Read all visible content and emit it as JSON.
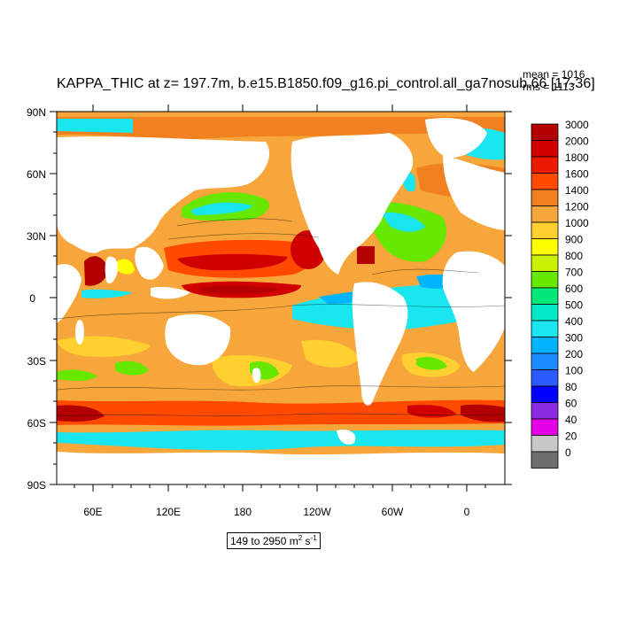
{
  "title": "KAPPA_THIC at z= 197.7m, b.e15.B1850.f09_g16.pi_control.all_ga7nosub.66 [17-36]",
  "stats": {
    "mean": "mean = 1016",
    "rms": "rms = 1113"
  },
  "range": {
    "text": "149 to 2950 m",
    "unit_sup1": "2",
    "unit_mid": " s",
    "unit_sup2": "-1"
  },
  "axes": {
    "lat_ticks": [
      "90N",
      "60N",
      "30N",
      "0",
      "30S",
      "60S",
      "90S"
    ],
    "lon_ticks": [
      "60E",
      "120E",
      "180",
      "120W",
      "60W",
      "0"
    ]
  },
  "colorbar": {
    "labels": [
      "3000",
      "2000",
      "1800",
      "1600",
      "1400",
      "1200",
      "1000",
      "900",
      "800",
      "700",
      "600",
      "500",
      "400",
      "300",
      "200",
      "100",
      "80",
      "60",
      "40",
      "20",
      "0"
    ],
    "colors": [
      "#b30000",
      "#d10000",
      "#ee1a00",
      "#ff4a00",
      "#f08020",
      "#f6a63a",
      "#ffd030",
      "#ffff00",
      "#c8f000",
      "#66e800",
      "#00e87a",
      "#00e8c8",
      "#1ae6f0",
      "#00b4ff",
      "#1a8cff",
      "#2a5cff",
      "#0000ff",
      "#8a2be2",
      "#e600e6",
      "#c8c8c8",
      "#6e6e6e"
    ]
  },
  "colors": {
    "land": "#ffffff",
    "ocean_base": "#f6a63a",
    "warm": "#ff4a00",
    "hot": "#d10000",
    "extreme": "#b30000",
    "mid": "#ffd030",
    "green": "#66e800",
    "teal": "#00e8c8",
    "cyan": "#1ae6f0",
    "blue": "#00b4ff",
    "deep_blue": "#1a8cff"
  }
}
